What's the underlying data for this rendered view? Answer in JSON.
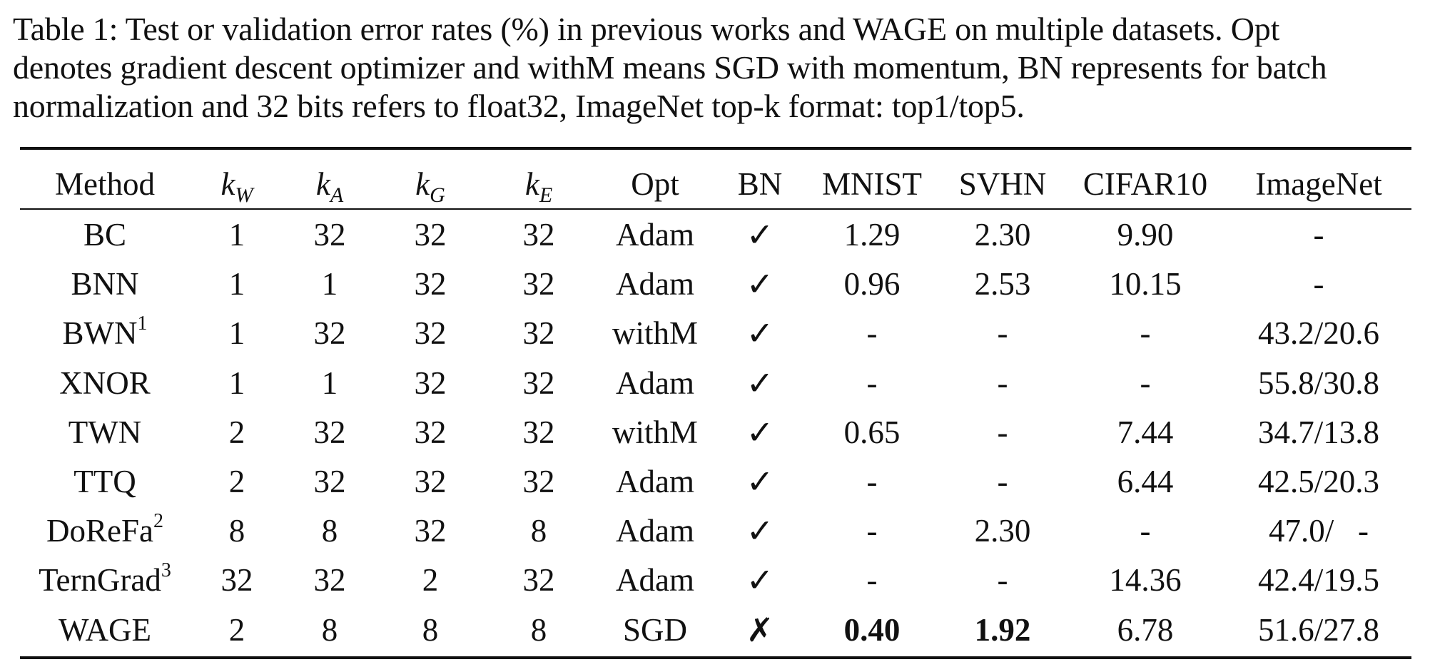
{
  "caption": {
    "lines": [
      "Table 1: Test or validation error rates (%) in previous works and WAGE on multiple datasets. Opt",
      "denotes gradient descent optimizer and withM means SGD with momentum, BN represents for batch",
      "normalization and 32 bits refers to float32, ImageNet top-k format: top1/top5."
    ]
  },
  "table": {
    "headers": {
      "method": "Method",
      "kw_var": "k",
      "kw_sub": "W",
      "ka_var": "k",
      "ka_sub": "A",
      "kg_var": "k",
      "kg_sub": "G",
      "ke_var": "k",
      "ke_sub": "E",
      "opt": "Opt",
      "bn": "BN",
      "mnist": "MNIST",
      "svhn": "SVHN",
      "cifar10": "CIFAR10",
      "imagenet": "ImageNet"
    },
    "rows": [
      {
        "method": "BC",
        "method_sup": "",
        "kw": "1",
        "ka": "32",
        "kg": "32",
        "ke": "32",
        "opt": "Adam",
        "bn": "✓",
        "mnist": "1.29",
        "svhn": "2.30",
        "cifar10": "9.90",
        "imagenet": "-"
      },
      {
        "method": "BNN",
        "method_sup": "",
        "kw": "1",
        "ka": "1",
        "kg": "32",
        "ke": "32",
        "opt": "Adam",
        "bn": "✓",
        "mnist": "0.96",
        "svhn": "2.53",
        "cifar10": "10.15",
        "imagenet": "-"
      },
      {
        "method": "BWN",
        "method_sup": "1",
        "kw": "1",
        "ka": "32",
        "kg": "32",
        "ke": "32",
        "opt": "withM",
        "bn": "✓",
        "mnist": "-",
        "svhn": "-",
        "cifar10": "-",
        "imagenet": "43.2/20.6"
      },
      {
        "method": "XNOR",
        "method_sup": "",
        "kw": "1",
        "ka": "1",
        "kg": "32",
        "ke": "32",
        "opt": "Adam",
        "bn": "✓",
        "mnist": "-",
        "svhn": "-",
        "cifar10": "-",
        "imagenet": "55.8/30.8"
      },
      {
        "method": "TWN",
        "method_sup": "",
        "kw": "2",
        "ka": "32",
        "kg": "32",
        "ke": "32",
        "opt": "withM",
        "bn": "✓",
        "mnist": "0.65",
        "svhn": "-",
        "cifar10": "7.44",
        "imagenet": "34.7/13.8"
      },
      {
        "method": "TTQ",
        "method_sup": "",
        "kw": "2",
        "ka": "32",
        "kg": "32",
        "ke": "32",
        "opt": "Adam",
        "bn": "✓",
        "mnist": "-",
        "svhn": "-",
        "cifar10": "6.44",
        "imagenet": "42.5/20.3"
      },
      {
        "method": "DoReFa",
        "method_sup": "2",
        "kw": "8",
        "ka": "8",
        "kg": "32",
        "ke": "8",
        "opt": "Adam",
        "bn": "✓",
        "mnist": "-",
        "svhn": "2.30",
        "cifar10": "-",
        "imagenet": "47.0/   -"
      },
      {
        "method": "TernGrad",
        "method_sup": "3",
        "kw": "32",
        "ka": "32",
        "kg": "2",
        "ke": "32",
        "opt": "Adam",
        "bn": "✓",
        "mnist": "-",
        "svhn": "-",
        "cifar10": "14.36",
        "imagenet": "42.4/19.5"
      },
      {
        "method": "WAGE",
        "method_sup": "",
        "kw": "2",
        "ka": "8",
        "kg": "8",
        "ke": "8",
        "opt": "SGD",
        "bn": "✗",
        "mnist": "0.40",
        "svhn": "1.92",
        "cifar10": "6.78",
        "imagenet": "51.6/27.8",
        "bold": [
          "mnist",
          "svhn"
        ]
      }
    ]
  }
}
